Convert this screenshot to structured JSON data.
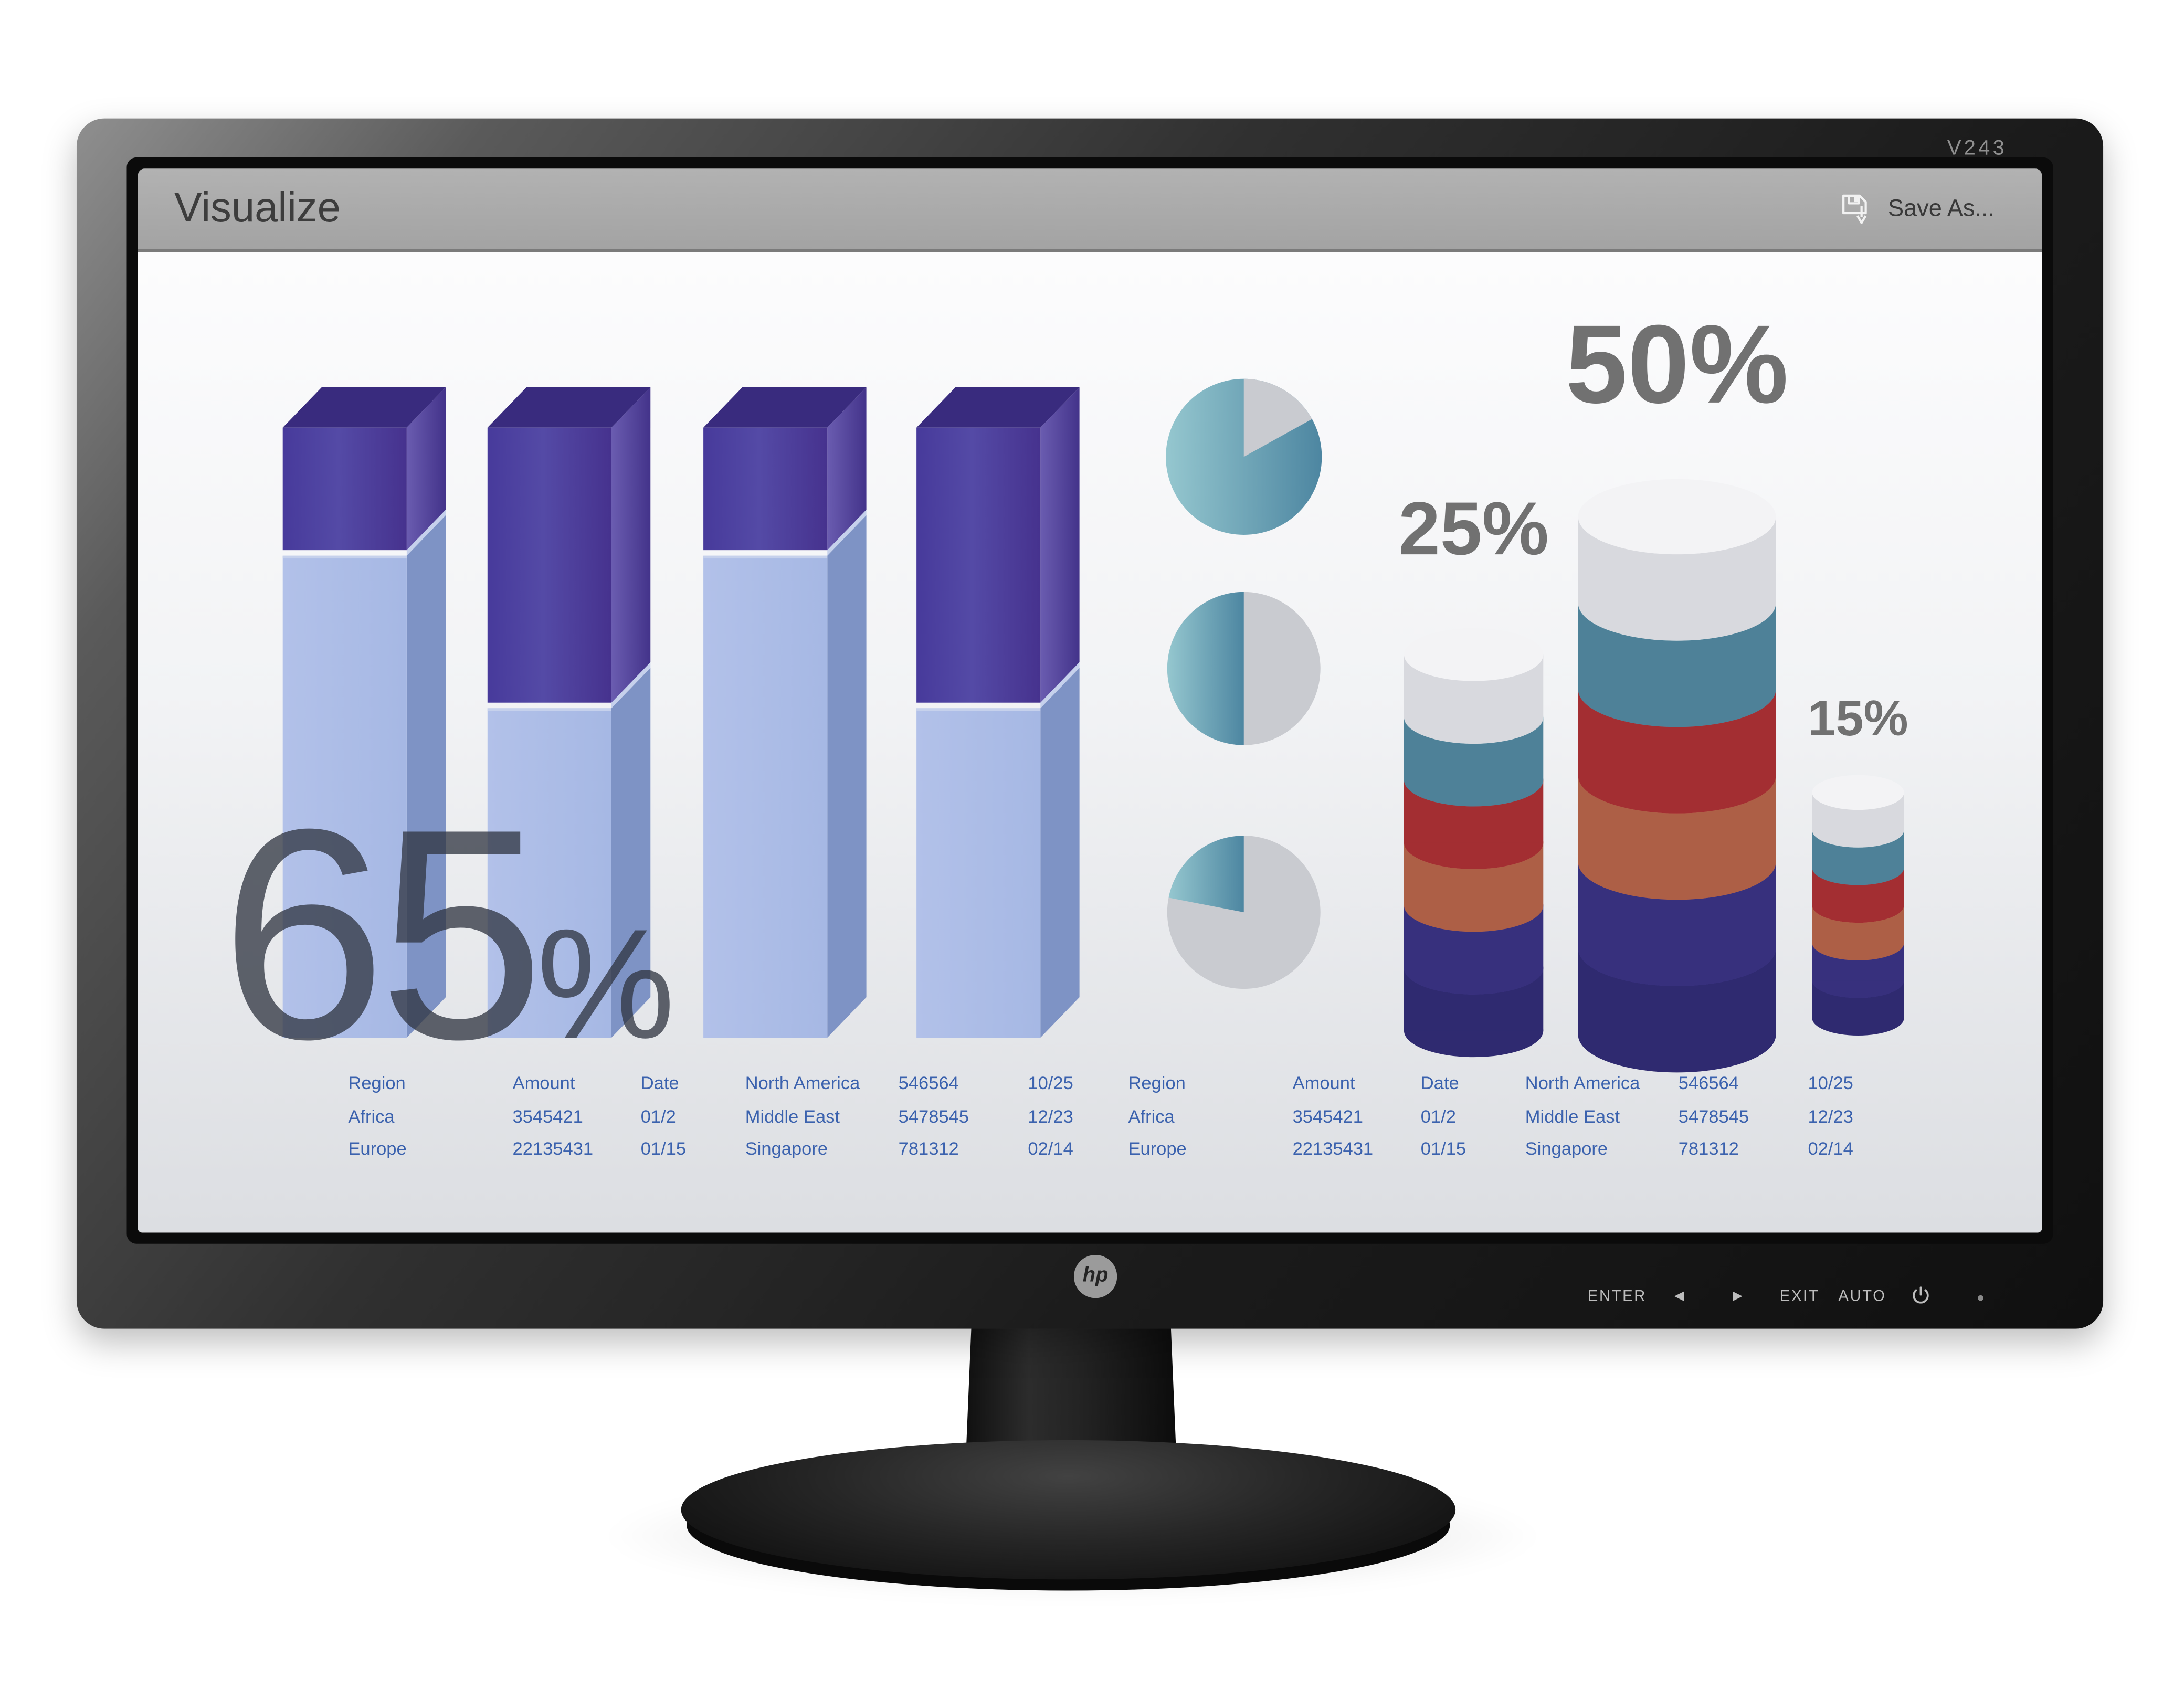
{
  "window": {
    "title": "Visualize",
    "save_button": {
      "label": "Save As...",
      "icon": "floppy-save-arrow"
    }
  },
  "monitor": {
    "model": "V243",
    "brand": "hp",
    "controls": [
      "ENTER",
      "◀",
      "▶",
      "EXIT",
      "AUTO"
    ],
    "power_button": "power",
    "led": "dot"
  },
  "chart_data": [
    {
      "id": "stacked-3d-bars",
      "type": "bar",
      "annotation": "65%",
      "categories": [
        "bar-1",
        "bar-2",
        "bar-3",
        "bar-4"
      ],
      "series": [
        {
          "name": "lower-light-blue",
          "values_pct": [
            79,
            54,
            79,
            54
          ]
        },
        {
          "name": "upper-purple",
          "values_pct": [
            21,
            46,
            21,
            46
          ]
        }
      ],
      "ylim": [
        0,
        100
      ],
      "grid": "off",
      "legend": "none"
    },
    {
      "id": "pie-column",
      "type": "pie",
      "pies": [
        {
          "slices": [
            {
              "name": "teal",
              "pct": 83
            },
            {
              "name": "gray",
              "pct": 17
            }
          ],
          "gray_arc_deg": [
            0,
            61
          ]
        },
        {
          "slices": [
            {
              "name": "teal",
              "pct": 50
            },
            {
              "name": "gray",
              "pct": 50
            }
          ],
          "teal_arc_deg": [
            180,
            360
          ]
        },
        {
          "slices": [
            {
              "name": "teal",
              "pct": 22
            },
            {
              "name": "gray",
              "pct": 78
            }
          ],
          "teal_arc_deg": [
            281,
            360
          ]
        }
      ]
    },
    {
      "id": "coin-stacks",
      "type": "bar",
      "stacks": [
        {
          "label": "25%",
          "coins": [
            "white",
            "teal",
            "red",
            "salmon",
            "indigo",
            "indigo-dark"
          ]
        },
        {
          "label": "50%",
          "coins": [
            "white",
            "teal",
            "red",
            "salmon",
            "indigo",
            "indigo-dark"
          ]
        },
        {
          "label": "15%",
          "coins": [
            "white",
            "teal",
            "red",
            "salmon",
            "indigo",
            "indigo-dark"
          ]
        }
      ]
    }
  ],
  "tables": {
    "left": {
      "rows": [
        [
          "Region",
          "Amount",
          "Date",
          "North America",
          "546564",
          "10/25"
        ],
        [
          "Africa",
          "3545421",
          "01/2",
          "Middle East",
          "5478545",
          "12/23"
        ],
        [
          "Europe",
          "22135431",
          "01/15",
          "Singapore",
          "781312",
          "02/14"
        ]
      ]
    },
    "right": {
      "rows": [
        [
          "Region",
          "Amount",
          "Date",
          "North America",
          "546564",
          "10/25"
        ],
        [
          "Africa",
          "3545421",
          "01/2",
          "Middle East",
          "5478545",
          "12/23"
        ],
        [
          "Europe",
          "22135431",
          "01/15",
          "Singapore",
          "781312",
          "02/14"
        ]
      ]
    }
  },
  "palette": {
    "purple_front": "#473a9b",
    "purple_front_mid": "#544aa6",
    "purple_front_edge": "#46328e",
    "purple_side_light": "#6a5cb0",
    "purple_side_dark": "#43338a",
    "purple_top": "#392b7e",
    "blue_front": "#a6b8e4",
    "blue_front_light": "#b2c1e9",
    "blue_side": "#7e93c5",
    "blue_sliver": "#c6d1ec",
    "teal_light": "#95c7cf",
    "teal_dark": "#4d86a1",
    "pie_gray": "#c9cbd0",
    "coin_white_top": "#f3f3f5",
    "coin_white_side": "#d8d9de",
    "coin_teal_top": "#7cb9c4",
    "coin_teal_side": "#4e8198",
    "coin_red_top": "#cf4245",
    "coin_red_side": "#a32e32",
    "coin_salmon_top": "#d8906f",
    "coin_salmon_side": "#ad5f46",
    "coin_indigo_top": "#4e43a1",
    "coin_indigo_side": "#37307d",
    "coin_indigo_dark_top": "#463b97",
    "coin_indigo_dark_side": "#2f2a70",
    "big_percent_text": "#2f3540",
    "label_gray": "#717171",
    "table_text": "#3b62ae",
    "titlebar_gray": "#a9a9a9"
  }
}
